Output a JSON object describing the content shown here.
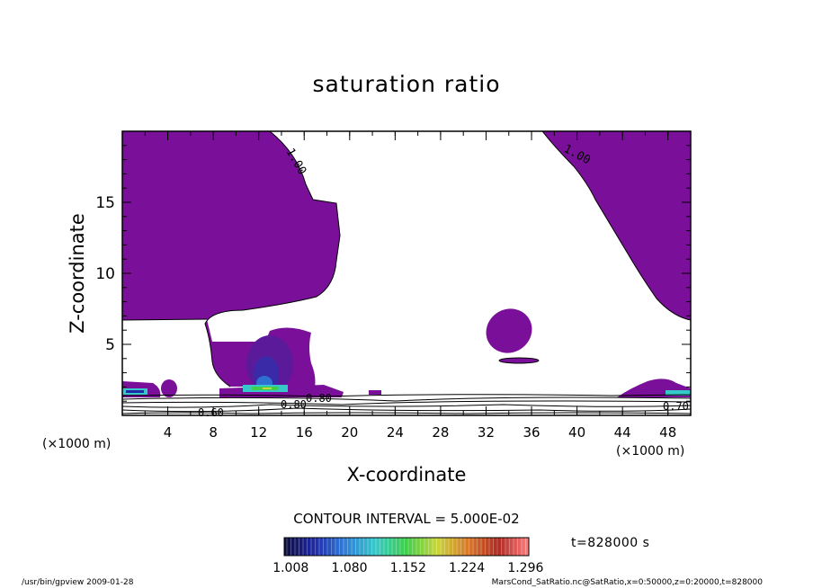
{
  "chart_data": {
    "type": "contour",
    "title": "saturation ratio",
    "xlabel": "X-coordinate",
    "ylabel": "Z-coordinate",
    "x_unit_label": "(×1000 m)",
    "xlim": [
      0,
      50
    ],
    "ylim": [
      0,
      20
    ],
    "xticks": [
      "4",
      "8",
      "12",
      "16",
      "20",
      "24",
      "28",
      "32",
      "36",
      "40",
      "44",
      "48"
    ],
    "yticks": [
      "5",
      "10",
      "15"
    ],
    "contour_interval_label": "CONTOUR INTERVAL = 5.000E-02",
    "time_label": "t=828000 s",
    "contour_labels": [
      "1.00",
      "1.00",
      "0.60",
      "0.70",
      "0.80",
      "0.80"
    ],
    "colorbar_ticks": [
      "1.008",
      "1.080",
      "1.152",
      "1.224",
      "1.296"
    ],
    "colorbar_range": [
      1.0,
      1.3
    ],
    "colorbar_colors": [
      "#0d0d3a",
      "#1f2aa8",
      "#2f7fd9",
      "#35c9c9",
      "#3fcf4a",
      "#c9d63a",
      "#d97a2a",
      "#b02a22",
      "#ff7f7f"
    ],
    "fill_color": "#7a109a",
    "footer_left": "/usr/bin/gpview   2009-01-28",
    "footer_right": "MarsCond_SatRatio.nc@SatRatio,x=0:50000,z=0:20000,t=828000"
  }
}
